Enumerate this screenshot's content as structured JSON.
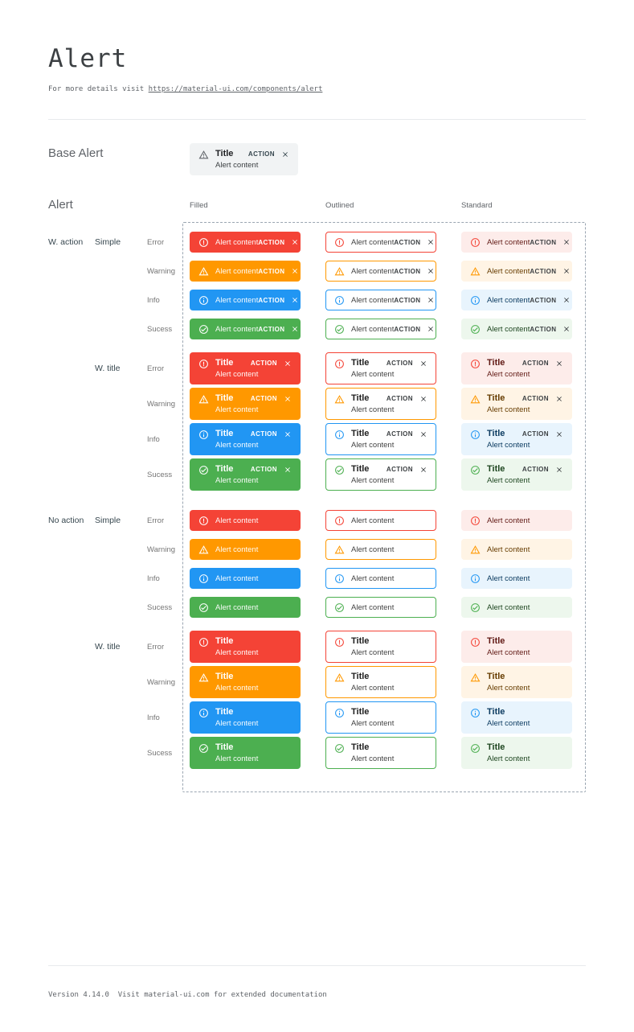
{
  "header": {
    "title": "Alert",
    "subtitle_prefix": "For more details visit ",
    "subtitle_link": "https://material-ui.com/components/alert"
  },
  "base_section": {
    "label": "Base Alert",
    "alert": {
      "title": "Title",
      "content": "Alert content",
      "action": "ACTION",
      "icon": "warning-triangle-icon"
    }
  },
  "alert_section": {
    "label": "Alert",
    "variants": [
      {
        "key": "filled",
        "label": "Filled"
      },
      {
        "key": "outlined",
        "label": "Outlined"
      },
      {
        "key": "standard",
        "label": "Standard"
      }
    ],
    "groups": [
      {
        "label": "W. action",
        "with_action": true,
        "subgroups": [
          {
            "label": "Simple",
            "with_title": false
          },
          {
            "label": "W. title",
            "with_title": true
          }
        ]
      },
      {
        "label": "No action",
        "with_action": false,
        "subgroups": [
          {
            "label": "Simple",
            "with_title": false
          },
          {
            "label": "W. title",
            "with_title": true
          }
        ]
      }
    ],
    "severities": [
      {
        "key": "error",
        "label": "Error",
        "icon": "error-circle-icon",
        "main": "#f44336",
        "standard_bg": "#fdecea",
        "standard_text": "#611a15"
      },
      {
        "key": "warning",
        "label": "Warning",
        "icon": "warning-triangle-icon",
        "main": "#ff9800",
        "standard_bg": "#fff4e5",
        "standard_text": "#663c00"
      },
      {
        "key": "info",
        "label": "Info",
        "icon": "info-circle-icon",
        "main": "#2196f3",
        "standard_bg": "#e8f4fd",
        "standard_text": "#0d3c61"
      },
      {
        "key": "success",
        "label": "Sucess",
        "icon": "success-check-icon",
        "main": "#4caf50",
        "standard_bg": "#edf7ed",
        "standard_text": "#1e4620"
      }
    ],
    "alert_text": {
      "title": "Title",
      "content": "Alert content",
      "action": "ACTION"
    }
  },
  "colors": {
    "filled_text": "#ffffff",
    "outlined_text": "#424242",
    "title_dark": "#212121",
    "action_dark": "#3c4043",
    "base_bg": "#f1f3f4",
    "base_icon": "#5f6368",
    "dashed_border": "#9aa5b1"
  },
  "footer": {
    "text": "Version 4.14.0  Visit material-ui.com for extended documentation"
  }
}
